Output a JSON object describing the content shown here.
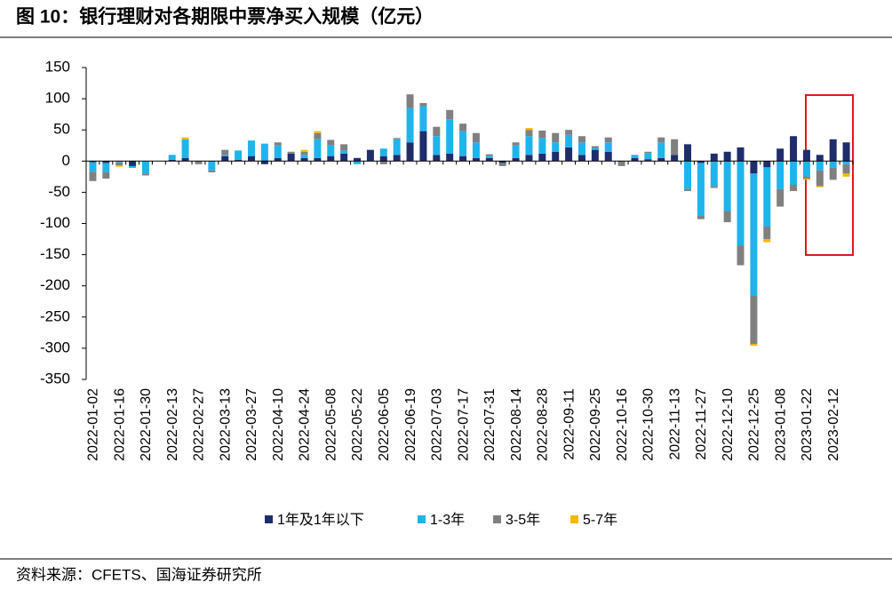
{
  "chart_data": {
    "type": "bar",
    "stacked": true,
    "title": "图 10：银行理财对各期限中票净买入规模（亿元）",
    "source": "资料来源：CFETS、国海证券研究所",
    "categories": [
      "2022-01-02",
      null,
      "2022-01-16",
      null,
      "2022-01-30",
      null,
      "2022-02-13",
      null,
      "2022-02-27",
      null,
      "2022-03-13",
      null,
      "2022-03-27",
      null,
      "2022-04-10",
      null,
      "2022-04-24",
      null,
      "2022-05-08",
      null,
      "2022-05-22",
      null,
      "2022-06-05",
      null,
      "2022-06-19",
      null,
      "2022-07-03",
      null,
      "2022-07-17",
      null,
      "2022-07-31",
      null,
      "2022-08-14",
      null,
      "2022-08-28",
      null,
      "2022-09-11",
      null,
      "2022-09-25",
      null,
      "2022-10-16",
      null,
      "2022-10-30",
      null,
      "2022-11-13",
      null,
      "2022-11-27",
      null,
      "2022-12-10",
      null,
      "2022-12-25",
      null,
      "2023-01-08",
      null,
      "2023-01-22",
      null,
      "2023-02-12",
      null
    ],
    "series": [
      {
        "name": "1年及1年以下",
        "color": "#1f2d6b",
        "values": [
          -2,
          -3,
          0,
          -8,
          0,
          0,
          2,
          5,
          0,
          0,
          8,
          2,
          8,
          -5,
          5,
          12,
          5,
          5,
          8,
          12,
          5,
          18,
          8,
          10,
          30,
          48,
          10,
          12,
          8,
          5,
          5,
          -3,
          5,
          10,
          12,
          15,
          22,
          10,
          18,
          15,
          0,
          5,
          3,
          5,
          10,
          27,
          -3,
          12,
          15,
          22,
          -20,
          -10,
          20,
          40,
          18,
          10,
          35,
          30
        ]
      },
      {
        "name": "1-3年",
        "color": "#1fb4ec",
        "values": [
          -15,
          -15,
          -2,
          -3,
          -20,
          0,
          8,
          30,
          0,
          -15,
          2,
          15,
          25,
          28,
          20,
          0,
          5,
          30,
          18,
          5,
          -5,
          0,
          12,
          25,
          55,
          40,
          30,
          55,
          40,
          25,
          3,
          0,
          20,
          30,
          25,
          15,
          20,
          20,
          3,
          15,
          0,
          5,
          10,
          25,
          0,
          -45,
          -85,
          -40,
          -80,
          -135,
          -195,
          -95,
          -45,
          -38,
          -25,
          -15,
          -10,
          -5
        ]
      },
      {
        "name": "3-5年",
        "color": "#808080",
        "values": [
          -15,
          -10,
          -5,
          0,
          -3,
          0,
          0,
          0,
          -5,
          -3,
          8,
          0,
          0,
          0,
          5,
          3,
          5,
          10,
          8,
          10,
          0,
          0,
          -5,
          2,
          22,
          5,
          15,
          15,
          12,
          15,
          3,
          -5,
          5,
          10,
          12,
          15,
          8,
          10,
          3,
          8,
          -8,
          0,
          2,
          8,
          25,
          -3,
          -5,
          -3,
          -18,
          -32,
          -78,
          -20,
          -28,
          -10,
          -3,
          -25,
          -20,
          -15
        ]
      },
      {
        "name": "5-7年",
        "color": "#f5b800",
        "values": [
          0,
          0,
          -2,
          0,
          0,
          0,
          0,
          3,
          0,
          0,
          0,
          0,
          0,
          0,
          0,
          0,
          3,
          3,
          0,
          0,
          0,
          0,
          0,
          0,
          0,
          0,
          0,
          0,
          0,
          0,
          0,
          0,
          0,
          3,
          0,
          0,
          0,
          0,
          0,
          0,
          0,
          0,
          0,
          0,
          0,
          0,
          0,
          0,
          0,
          0,
          -3,
          -5,
          0,
          0,
          -2,
          -2,
          0,
          -5
        ]
      }
    ],
    "ylim": [
      -350,
      150
    ],
    "yticks": [
      150,
      100,
      50,
      0,
      -50,
      -100,
      -150,
      -200,
      -250,
      -300,
      -350
    ]
  }
}
